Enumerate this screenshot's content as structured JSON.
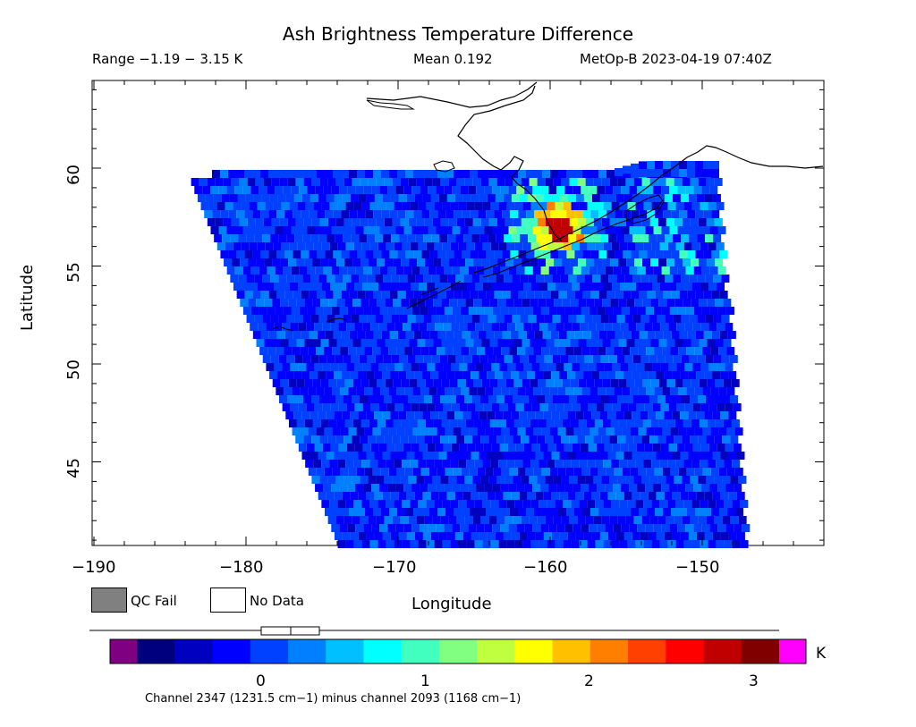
{
  "title": "Ash Brightness Temperature Difference",
  "header": {
    "range": "Range −1.19 − 3.15 K",
    "mean": "Mean 0.192",
    "satellite_time": "MetOp-B 2023-04-19 07:40Z"
  },
  "map": {
    "lon_range": [
      -191,
      -142
    ],
    "lat_range": [
      40.5,
      64.4
    ],
    "x_label": "Longitude",
    "y_label": "Latitude",
    "x_ticks": [
      "−190",
      "−180",
      "−170",
      "−160",
      "−150"
    ],
    "y_ticks": [
      "45",
      "50",
      "55",
      "60"
    ],
    "hotspot_note": "Ash signal near Alaska Peninsula (~−159°, 57°N)",
    "colors": {
      "background": "#ffffff",
      "coast": "#000000"
    }
  },
  "legend": {
    "qc_fail": "QC Fail",
    "no_data": "No Data",
    "qc_fail_color": "#808080",
    "no_data_color": "#ffffff"
  },
  "colorbar": {
    "ticks": [
      "0",
      "1",
      "2",
      "3"
    ],
    "unit": "K",
    "channel_note": "Channel 2347 (1231.5 cm−1) minus channel 2093 (1168 cm−1)",
    "under_color": "#7f0080",
    "over_color": "#ff00ff",
    "colors": [
      "#00007f",
      "#0000c0",
      "#0000ff",
      "#0040ff",
      "#0080ff",
      "#00c0ff",
      "#00ffff",
      "#40ffbf",
      "#80ff80",
      "#bfff40",
      "#ffff00",
      "#ffc000",
      "#ff8000",
      "#ff4000",
      "#ff0000",
      "#c00000",
      "#800000"
    ]
  }
}
